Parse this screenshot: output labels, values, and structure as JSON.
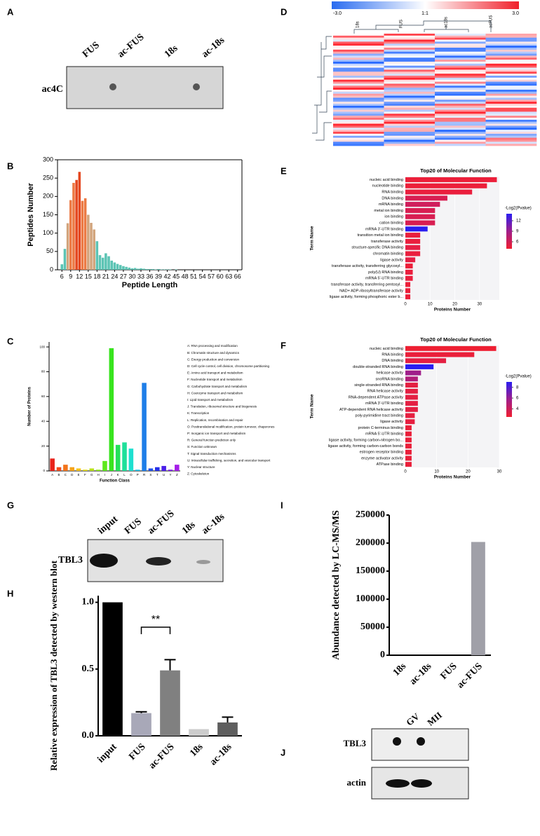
{
  "panel_labels": [
    "A",
    "B",
    "C",
    "D",
    "E",
    "F",
    "G",
    "H",
    "I",
    "J"
  ],
  "blot_A": {
    "lanes": [
      "FUS",
      "ac-FUS",
      "18s",
      "ac-18s"
    ],
    "row": "ac4C"
  },
  "heatmap_D": {
    "scale_labels": [
      "-3.0",
      "1:1",
      "3.0"
    ],
    "columns": [
      "18s",
      "FUS",
      "ac18s",
      "acFUS"
    ]
  },
  "blot_G": {
    "lanes": [
      "input",
      "FUS",
      "ac-FUS",
      "18s",
      "ac-18s"
    ],
    "row": "TBL3"
  },
  "blot_J": {
    "lanes": [
      "GV",
      "MII"
    ],
    "rows": [
      "TBL3",
      "actin"
    ]
  },
  "chart_data": [
    {
      "type": "bar",
      "xlabel": "Peptide Length",
      "ylabel": "Peptides Number",
      "x": [
        6,
        7,
        8,
        9,
        10,
        11,
        12,
        13,
        14,
        15,
        16,
        17,
        18,
        19,
        20,
        21,
        22,
        23,
        24,
        25,
        26,
        27,
        28,
        29,
        30,
        31,
        32,
        33,
        34,
        35,
        36,
        37,
        38,
        39,
        40,
        41,
        42,
        43,
        44,
        45
      ],
      "values": [
        15,
        57,
        127,
        190,
        237,
        245,
        267,
        188,
        195,
        150,
        128,
        110,
        78,
        40,
        33,
        45,
        37,
        25,
        20,
        16,
        13,
        10,
        8,
        6,
        4,
        5,
        3,
        4,
        3,
        2,
        2,
        2,
        1,
        2,
        1,
        1,
        1,
        1,
        0,
        1
      ],
      "colors": [
        "#5cc4b4",
        "#5cc4b4",
        "#d2a47c",
        "#ec7a44",
        "#ec7a44",
        "#e4471f",
        "#e4471f",
        "#ec7a44",
        "#ec7a44",
        "#d2a47c",
        "#d2a47c",
        "#d2a47c",
        "#5cc4b4",
        "#5cc4b4",
        "#5cc4b4",
        "#5cc4b4",
        "#5cc4b4",
        "#5cc4b4",
        "#5cc4b4",
        "#5cc4b4",
        "#5cc4b4",
        "#5cc4b4",
        "#5cc4b4",
        "#5cc4b4",
        "#5cc4b4",
        "#5cc4b4",
        "#5cc4b4",
        "#5cc4b4",
        "#5cc4b4",
        "#5cc4b4",
        "#5cc4b4",
        "#5cc4b4",
        "#5cc4b4",
        "#5cc4b4",
        "#5cc4b4",
        "#5cc4b4",
        "#5cc4b4",
        "#5cc4b4",
        "#5cc4b4",
        "#5cc4b4"
      ],
      "xlim": [
        4.5,
        67.5
      ],
      "xticks": [
        6,
        9,
        12,
        15,
        18,
        21,
        24,
        27,
        30,
        33,
        36,
        39,
        42,
        45,
        48,
        51,
        54,
        57,
        60,
        63,
        66
      ],
      "ylim": [
        0,
        300
      ],
      "yticks": [
        0,
        50,
        100,
        150,
        200,
        250,
        300
      ]
    },
    {
      "type": "bar",
      "xlabel": "Function Class",
      "ylabel": "Number of Proteins",
      "categories": [
        "A",
        "B",
        "C",
        "D",
        "E",
        "F",
        "G",
        "H",
        "I",
        "J",
        "K",
        "L",
        "O",
        "P",
        "R",
        "S",
        "T",
        "U",
        "Y",
        "Z"
      ],
      "values": [
        10,
        3,
        5,
        3,
        2,
        1,
        2,
        1,
        8,
        99,
        21,
        23,
        18,
        1,
        71,
        2,
        3,
        4,
        1,
        5
      ],
      "colors": [
        "#e8231b",
        "#f04a1a",
        "#f2741b",
        "#f4a31a",
        "#f2c21a",
        "#e0d81a",
        "#b8e01a",
        "#8ee81a",
        "#5ee81c",
        "#38e41e",
        "#24e05a",
        "#20e09a",
        "#1ee0d0",
        "#1ec0e8",
        "#1e7ee8",
        "#1e50e8",
        "#2630e8",
        "#4a1ee8",
        "#7a1ee8",
        "#a41ee8"
      ],
      "category_descriptions": [
        "A: RNA processing and modification",
        "B: Chromatin structure and dynamics",
        "C: Energy production and conversion",
        "D: Cell cycle control, cell division, chromosome partitioning",
        "E: Amino acid transport and metabolism",
        "F: Nucleotide transport and metabolism",
        "G: Carbohydrate transport and metabolism",
        "H: Coenzyme transport and metabolism",
        "I: Lipid transport and metabolism",
        "J: Translation, ribosomal structure and biogenesis",
        "K: Transcription",
        "L: Replication, recombination and repair",
        "O: Posttranslational modification, protein turnover, chaperones",
        "P: Inorganic ion transport and metabolism",
        "R: General function prediction only",
        "S: Function unknown",
        "T: Signal transduction mechanisms",
        "U: Intracellular trafficking, secretion, and vesicular transport",
        "Y: Nuclear structure",
        "Z: Cytoskeleton"
      ],
      "ylim": [
        0,
        104
      ],
      "yticks": [
        0,
        20,
        40,
        60,
        80,
        100
      ]
    },
    {
      "type": "barh",
      "title": "Top20 of Molecular Function",
      "xlabel": "Proteins Number",
      "ylabel": "Term Name",
      "categories": [
        "nucleic acid binding",
        "nucleotide binding",
        "RNA binding",
        "DNA binding",
        "mRNA binding",
        "metal ion binding",
        "ion binding",
        "cation binding",
        "mRNA 3'-UTR binding",
        "transition metal ion binding",
        "transferase activity",
        "structure-specific DNA binding",
        "chromatin binding",
        "ligase activity",
        "transferase activity, transferring glycosyl...",
        "poly(U) RNA binding",
        "mRNA 5'-UTR binding",
        "transferase activity, transferring pentosyl...",
        "NAD+ ADP-ribosyltransferase activity",
        "ligase activity, forming phosphoric ester b..."
      ],
      "values": [
        37,
        33,
        27,
        17,
        14,
        12,
        12,
        12,
        9,
        6,
        6,
        6,
        6,
        4,
        3,
        3,
        3,
        2,
        2,
        2
      ],
      "colors": [
        "#ec1f3a",
        "#ec1f3a",
        "#ea1f3e",
        "#d81e52",
        "#d01e5c",
        "#d81e52",
        "#d81e52",
        "#d81e52",
        "#2a1ef0",
        "#ea1f3e",
        "#ea1f3e",
        "#e61f44",
        "#ea1f3e",
        "#e61f44",
        "#ec1f3a",
        "#ea1f3e",
        "#ea1f3e",
        "#ec1f3a",
        "#ec1f3a",
        "#ec1f3a"
      ],
      "xlim": [
        0,
        38
      ],
      "xticks": [
        0,
        10,
        20,
        30
      ],
      "colorbar": {
        "label": "-Log2(Pvalue)",
        "lim": [
          4,
          14
        ],
        "ticks": [
          12,
          9,
          6
        ]
      }
    },
    {
      "type": "barh",
      "title": "Top20 of Molecular Function",
      "xlabel": "Proteins Number",
      "ylabel": "Term Name",
      "categories": [
        "nucleic acid binding",
        "RNA binding",
        "DNA binding",
        "double-stranded RNA binding",
        "helicase activity",
        "snoRNA binding",
        "single-stranded RNA binding",
        "RNA helicase activity",
        "RNA-dependent ATPase activity",
        "mRNA 3'-UTR binding",
        "ATP-dependent RNA helicase activity",
        "poly-pyrimidine tract binding",
        "ligase activity",
        "protein C-terminus binding",
        "mRNA 5'-UTR binding",
        "ligase activity, forming carbon-nitrogen bo...",
        "ligase activity, forming carbon-carbon bonds",
        "estrogen receptor binding",
        "enzyme activator activity",
        "ATPase binding"
      ],
      "values": [
        29,
        22,
        13,
        9,
        5,
        4,
        4,
        4,
        4,
        4,
        4,
        3,
        3,
        2,
        2,
        2,
        2,
        2,
        2,
        2
      ],
      "colors": [
        "#ee1f32",
        "#ea1f3a",
        "#e41f42",
        "#2a1ef0",
        "#a01f8a",
        "#b01e7a",
        "#e41f42",
        "#e41f42",
        "#e41f42",
        "#e41f42",
        "#e41f42",
        "#e61f40",
        "#e61f40",
        "#ea1f3a",
        "#ea1f3a",
        "#ea1f3a",
        "#ea1f3a",
        "#ea1f3a",
        "#ea1f3a",
        "#ea1f3a"
      ],
      "xlim": [
        0,
        30
      ],
      "xticks": [
        0,
        10,
        20,
        30
      ],
      "colorbar": {
        "label": "-Log2(Pvalue)",
        "lim": [
          2.5,
          9
        ],
        "ticks": [
          8,
          6,
          4
        ]
      }
    },
    {
      "type": "bar",
      "ylabel": "Relative expression of TBL3 detected by western blot",
      "categories": [
        "input",
        "FUS",
        "ac-FUS",
        "18s",
        "ac-18s"
      ],
      "values": [
        1.0,
        0.17,
        0.49,
        0.05,
        0.1
      ],
      "errors": [
        0,
        0.01,
        0.08,
        0,
        0.04
      ],
      "colors": [
        "#000000",
        "#a8a8b8",
        "#808080",
        "#cccccc",
        "#5e5e5e"
      ],
      "annotation": "**",
      "ylim": [
        0,
        1.05
      ],
      "yticks": [
        {
          "value": 0,
          "label": "0.0"
        },
        {
          "value": 0.5,
          "label": "0.5"
        },
        {
          "value": 1,
          "label": "1.0"
        }
      ]
    },
    {
      "type": "bar",
      "ylabel": "Abundance detected by LC-MS/MS",
      "categories": [
        "18s",
        "ac-18s",
        "FUS",
        "ac-FUS"
      ],
      "values": [
        0,
        0,
        0,
        202000
      ],
      "color": "#a0a0a8",
      "ylim": [
        0,
        250000
      ],
      "yticks": [
        0,
        50000,
        100000,
        150000,
        200000,
        250000
      ]
    }
  ]
}
